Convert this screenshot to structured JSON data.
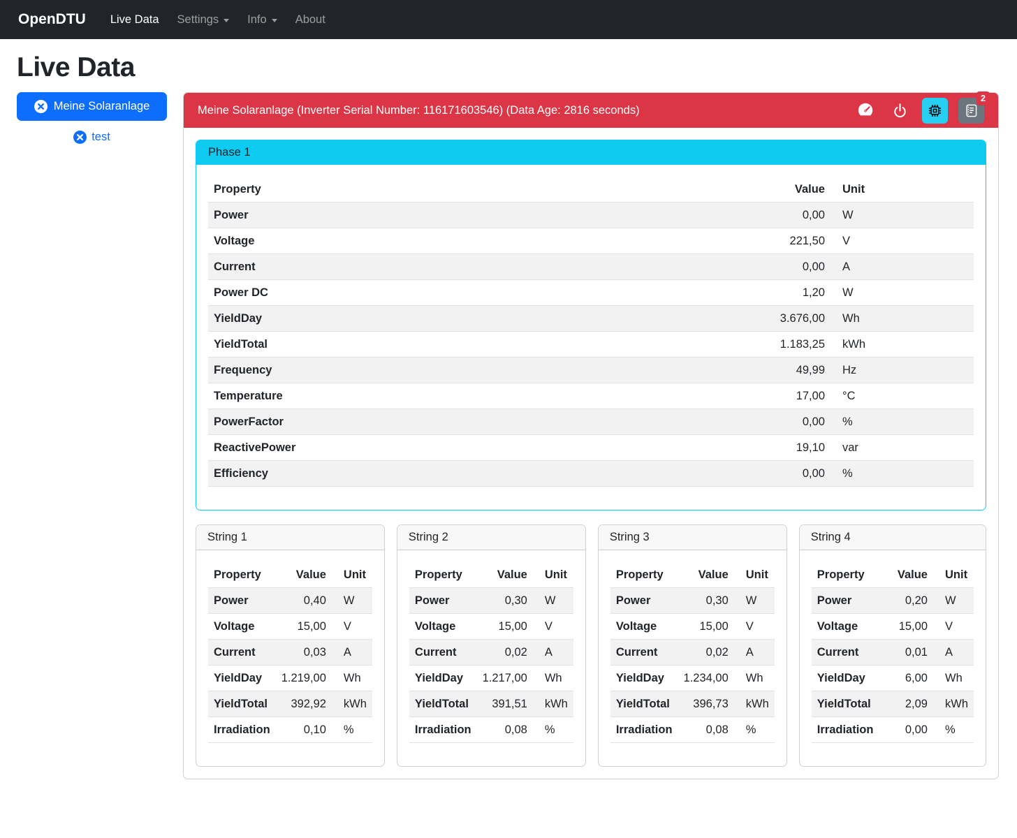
{
  "colors": {
    "navbar_bg": "#212529",
    "primary_blue": "#0d6efd",
    "danger_red": "#dc3545",
    "info_cyan": "#0dcaf0",
    "toolbar_cpu_button_bg": "#27cff2",
    "toolbar_journal_button_bg": "#6c757d",
    "striped_row": "#f2f2f2"
  },
  "navbar": {
    "brand": "OpenDTU",
    "items": [
      {
        "label": "Live Data",
        "active": true,
        "dropdown": false
      },
      {
        "label": "Settings",
        "active": false,
        "dropdown": true
      },
      {
        "label": "Info",
        "active": false,
        "dropdown": true
      },
      {
        "label": "About",
        "active": false,
        "dropdown": false
      }
    ]
  },
  "page": {
    "title": "Live Data"
  },
  "sidebar": {
    "selected_inverter": {
      "label": "Meine Solaranlage",
      "icon": "x-circle-icon"
    },
    "other_inverter": {
      "label": "test",
      "icon": "x-circle-icon"
    }
  },
  "inverter_card": {
    "header_title": "Meine Solaranlage (Inverter Serial Number: 116171603546) (Data Age: 2816 seconds)",
    "toolbar": [
      {
        "icon": "speedometer-icon"
      },
      {
        "icon": "power-icon"
      },
      {
        "icon": "cpu-icon",
        "active": true
      },
      {
        "icon": "journal-text-icon",
        "badge": "2"
      }
    ]
  },
  "phase_card": {
    "title": "Phase 1",
    "columns": [
      "Property",
      "Value",
      "Unit"
    ],
    "rows": [
      [
        "Power",
        "0,00",
        "W"
      ],
      [
        "Voltage",
        "221,50",
        "V"
      ],
      [
        "Current",
        "0,00",
        "A"
      ],
      [
        "Power DC",
        "1,20",
        "W"
      ],
      [
        "YieldDay",
        "3.676,00",
        "Wh"
      ],
      [
        "YieldTotal",
        "1.183,25",
        "kWh"
      ],
      [
        "Frequency",
        "49,99",
        "Hz"
      ],
      [
        "Temperature",
        "17,00",
        "°C"
      ],
      [
        "PowerFactor",
        "0,00",
        "%"
      ],
      [
        "ReactivePower",
        "19,10",
        "var"
      ],
      [
        "Efficiency",
        "0,00",
        "%"
      ]
    ]
  },
  "string_cards": [
    {
      "title": "String 1",
      "columns": [
        "Property",
        "Value",
        "Unit"
      ],
      "rows": [
        [
          "Power",
          "0,40",
          "W"
        ],
        [
          "Voltage",
          "15,00",
          "V"
        ],
        [
          "Current",
          "0,03",
          "A"
        ],
        [
          "YieldDay",
          "1.219,00",
          "Wh"
        ],
        [
          "YieldTotal",
          "392,92",
          "kWh"
        ],
        [
          "Irradiation",
          "0,10",
          "%"
        ]
      ]
    },
    {
      "title": "String 2",
      "columns": [
        "Property",
        "Value",
        "Unit"
      ],
      "rows": [
        [
          "Power",
          "0,30",
          "W"
        ],
        [
          "Voltage",
          "15,00",
          "V"
        ],
        [
          "Current",
          "0,02",
          "A"
        ],
        [
          "YieldDay",
          "1.217,00",
          "Wh"
        ],
        [
          "YieldTotal",
          "391,51",
          "kWh"
        ],
        [
          "Irradiation",
          "0,08",
          "%"
        ]
      ]
    },
    {
      "title": "String 3",
      "columns": [
        "Property",
        "Value",
        "Unit"
      ],
      "rows": [
        [
          "Power",
          "0,30",
          "W"
        ],
        [
          "Voltage",
          "15,00",
          "V"
        ],
        [
          "Current",
          "0,02",
          "A"
        ],
        [
          "YieldDay",
          "1.234,00",
          "Wh"
        ],
        [
          "YieldTotal",
          "396,73",
          "kWh"
        ],
        [
          "Irradiation",
          "0,08",
          "%"
        ]
      ]
    },
    {
      "title": "String 4",
      "columns": [
        "Property",
        "Value",
        "Unit"
      ],
      "rows": [
        [
          "Power",
          "0,20",
          "W"
        ],
        [
          "Voltage",
          "15,00",
          "V"
        ],
        [
          "Current",
          "0,01",
          "A"
        ],
        [
          "YieldDay",
          "6,00",
          "Wh"
        ],
        [
          "YieldTotal",
          "2,09",
          "kWh"
        ],
        [
          "Irradiation",
          "0,00",
          "%"
        ]
      ]
    }
  ]
}
